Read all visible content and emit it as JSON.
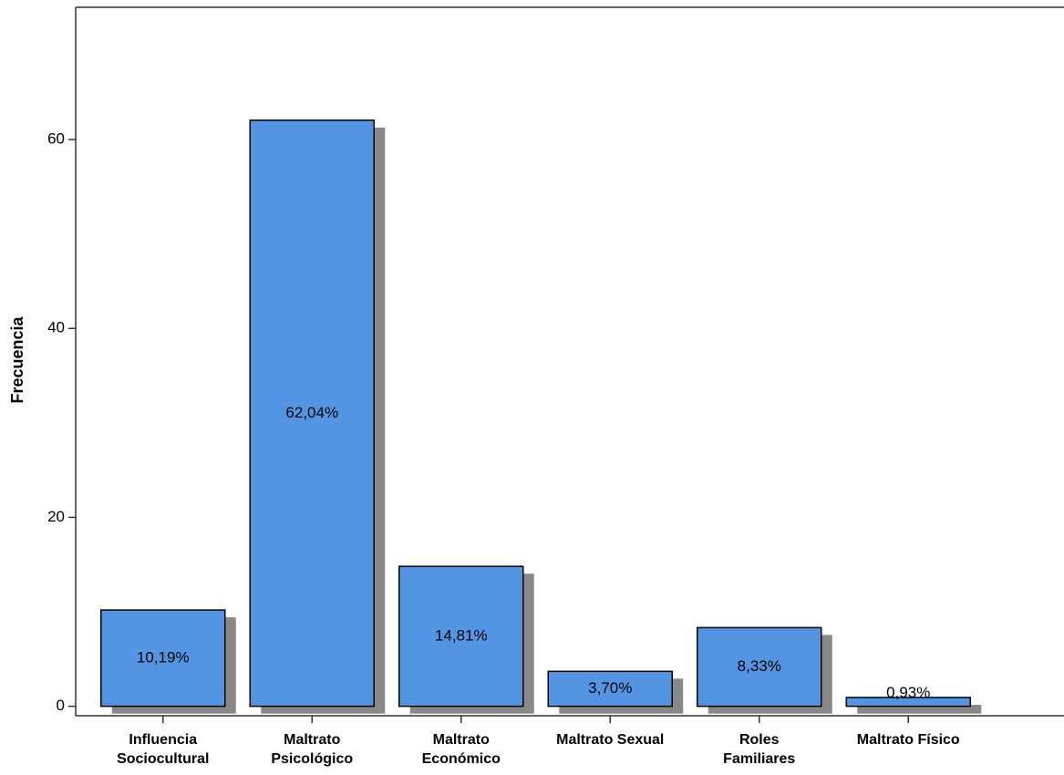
{
  "chart_data": {
    "type": "bar",
    "y_label": "Frecuencia",
    "categories": [
      [
        "Influencia",
        "Sociocultural"
      ],
      [
        "Maltrato",
        "Psicológico"
      ],
      [
        "Maltrato",
        "Económico"
      ],
      [
        "Maltrato Sexual"
      ],
      [
        "Roles",
        "Familiares"
      ],
      [
        "Maltrato Físico"
      ]
    ],
    "values": [
      10.19,
      62.04,
      14.81,
      3.7,
      8.33,
      0.93
    ],
    "value_labels": [
      "10,19%",
      "62,04%",
      "14,81%",
      "3,70%",
      "8,33%",
      "0,93%"
    ],
    "color": "#5495e3",
    "ylim": [
      -1,
      74
    ],
    "yticks": [
      0,
      20,
      40,
      60
    ],
    "grid": false
  }
}
